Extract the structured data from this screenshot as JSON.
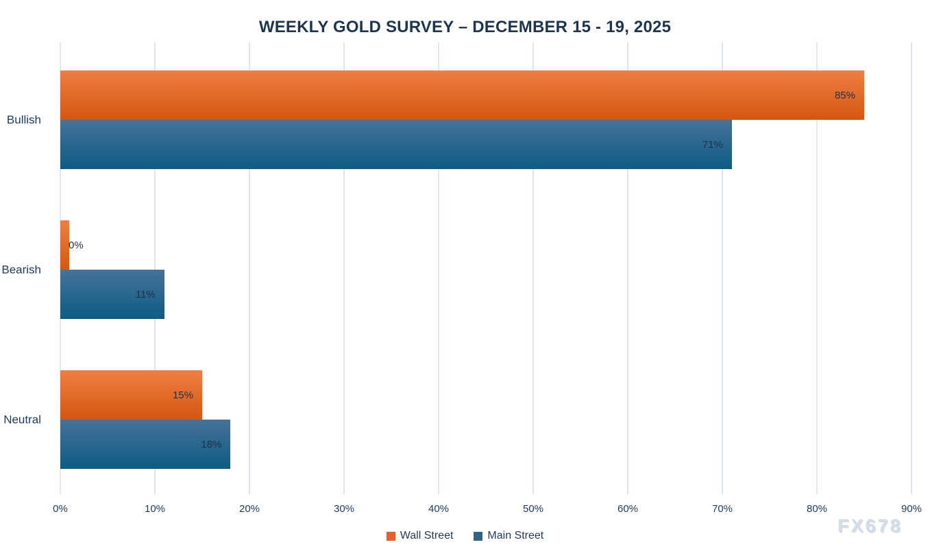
{
  "chart": {
    "title": "WEEKLY GOLD SURVEY – DECEMBER 15 - 19, 2025",
    "watermark": "FX678"
  },
  "chart_data": {
    "type": "bar",
    "orientation": "horizontal",
    "title": "WEEKLY GOLD SURVEY – DECEMBER 15 - 19, 2025",
    "categories": [
      "Bullish",
      "Bearish",
      "Neutral"
    ],
    "series": [
      {
        "name": "Wall Street",
        "values": [
          85,
          0,
          15
        ],
        "color_top": "#ee7f44",
        "color_bottom": "#d4570e",
        "legend_color": "#e5632a"
      },
      {
        "name": "Main Street",
        "values": [
          71,
          11,
          18
        ],
        "color_top": "#477299",
        "color_bottom": "#0c5c84",
        "legend_color": "#2c6386"
      }
    ],
    "xlim": [
      0,
      90
    ],
    "xtick_values": [
      0,
      10,
      20,
      30,
      40,
      50,
      60,
      70,
      80,
      90
    ],
    "xtick_labels": [
      "0%",
      "10%",
      "20%",
      "30%",
      "40%",
      "50%",
      "60%",
      "70%",
      "80%",
      "90%"
    ],
    "value_suffix": "%",
    "grid": true,
    "legend_position": "bottom",
    "data_labels": "inside-end"
  }
}
